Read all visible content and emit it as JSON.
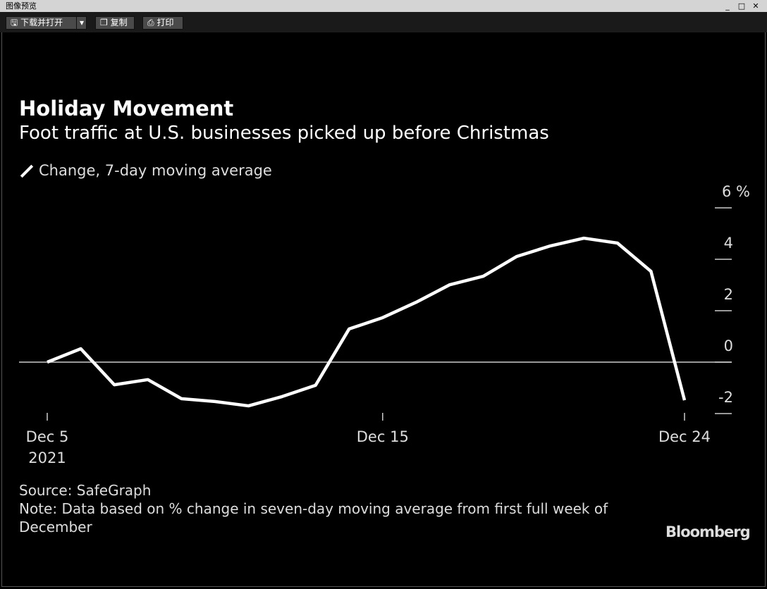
{
  "window": {
    "title": "图像预览",
    "minimize": "_",
    "maximize": "□",
    "close": "✕"
  },
  "toolbar": {
    "download_open": "下载并打开",
    "dropdown": "▾",
    "copy": "复制",
    "print": "打印"
  },
  "chart_data": {
    "type": "line",
    "title": "Holiday Movement",
    "subtitle": "Foot traffic at U.S. businesses picked up before Christmas",
    "legend": [
      {
        "name": "Change, 7-day moving average",
        "color": "#ffffff"
      }
    ],
    "legend_placement": "top-left",
    "x": [
      "Dec 5",
      "Dec 6",
      "Dec 7",
      "Dec 8",
      "Dec 9",
      "Dec 10",
      "Dec 11",
      "Dec 12",
      "Dec 13",
      "Dec 14",
      "Dec 15",
      "Dec 16",
      "Dec 17",
      "Dec 18",
      "Dec 19",
      "Dec 20",
      "Dec 21",
      "Dec 22",
      "Dec 23",
      "Dec 24"
    ],
    "series": [
      {
        "name": "Change, 7-day moving average",
        "values": [
          0,
          0.52,
          -0.88,
          -0.68,
          -1.42,
          -1.53,
          -1.7,
          -1.34,
          -0.9,
          1.29,
          1.73,
          2.33,
          3.01,
          3.34,
          4.11,
          4.52,
          4.82,
          4.63,
          3.53,
          -1.48
        ]
      }
    ],
    "x_ticks": [
      {
        "index": 0,
        "label": "Dec 5",
        "sublabel": "2021"
      },
      {
        "index": 10,
        "label": "Dec 15"
      },
      {
        "index": 19,
        "label": "Dec 24"
      }
    ],
    "y_ticks": [
      {
        "value": 6,
        "label": "6 %"
      },
      {
        "value": 4,
        "label": "4"
      },
      {
        "value": 2,
        "label": "2"
      },
      {
        "value": 0,
        "label": "0"
      },
      {
        "value": -2,
        "label": "-2"
      }
    ],
    "ylim": [
      -2,
      6
    ],
    "y_axis_side": "right",
    "source": "Source: SafeGraph",
    "note": "Note: Data based on % change in seven-day moving average from first full week of December",
    "brand": "Bloomberg"
  }
}
